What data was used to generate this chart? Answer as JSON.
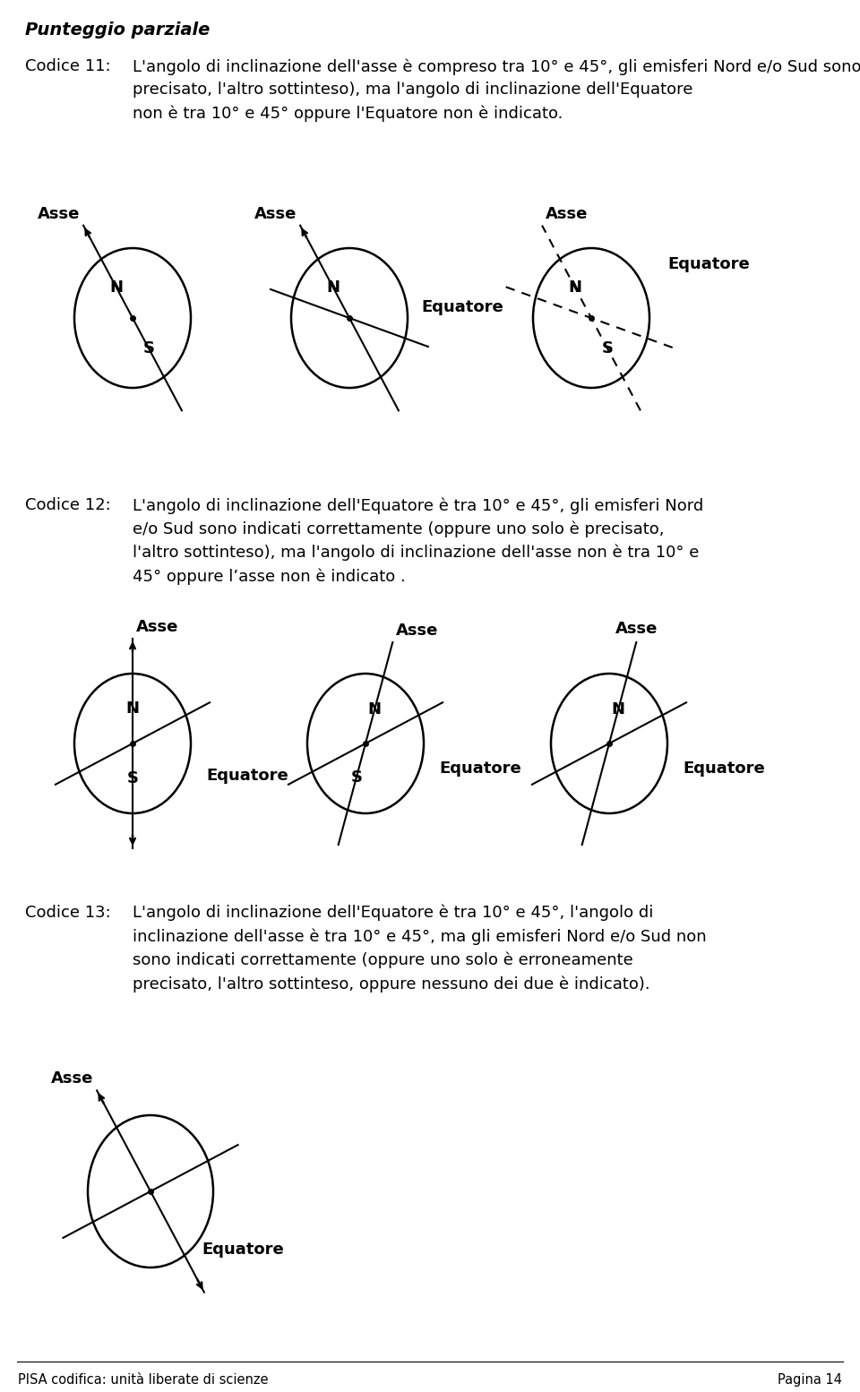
{
  "bg_color": "#ffffff",
  "title": "Punteggio parziale",
  "footer_left": "PISA codifica: unità liberate di scienze",
  "footer_right": "Pagina 14",
  "codice11_label": "Codice 11:",
  "codice11_text": "L'angolo di inclinazione dell'asse è compreso tra 10° e 45°, gli emisferi Nord e/o Sud sono indicati correttamente (oppure uno solo è\nprecisato, l'altro sottinteso), ma l'angolo di inclinazione dell'Equatore\nnon è tra 10° e 45° oppure l'Equatore non è indicato.",
  "codice12_label": "Codice 12:",
  "codice12_text": "L'angolo di inclinazione dell'Equatore è tra 10° e 45°, gli emisferi Nord\ne/o Sud sono indicati correttamente (oppure uno solo è precisato,\nl'altro sottinteso), ma l'angolo di inclinazione dell'asse non è tra 10° e\n45° oppure l’asse non è indicato .",
  "codice13_label": "Codice 13:",
  "codice13_text": "L'angolo di inclinazione dell'Equatore è tra 10° e 45°, l'angolo di\ninclinazione dell'asse è tra 10° e 45°, ma gli emisferi Nord e/o Sud non\nsono indicati correttamente (oppure uno solo è erroneamente\nprecisato, l'altro sottinteso, oppure nessuno dei due è indicato)."
}
